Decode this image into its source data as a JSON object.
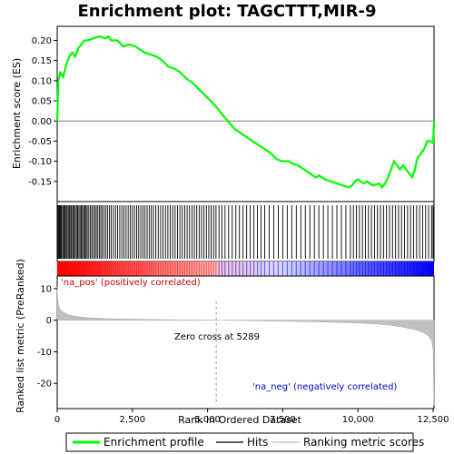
{
  "chart_data": {
    "type": "line",
    "title": "Enrichment plot: TAGCTTT,MIR-9",
    "panels": {
      "es": {
        "ylabel": "Enrichment score (ES)",
        "ylim": [
          -0.2,
          0.235
        ],
        "yticks": [
          -0.15,
          -0.1,
          -0.05,
          0.0,
          0.05,
          0.1,
          0.15,
          0.2
        ],
        "ytick_labels": [
          "-0.15",
          "-0.10",
          "-0.05",
          "0.00",
          "0.05",
          "0.10",
          "0.15",
          "0.20"
        ],
        "series": [
          {
            "name": "Enrichment profile",
            "color": "#00ff00",
            "x": [
              0,
              40,
              100,
              200,
              300,
              400,
              500,
              600,
              700,
              800,
              900,
              1000,
              1200,
              1400,
              1600,
              1700,
              1800,
              2000,
              2200,
              2400,
              2600,
              2700,
              2900,
              3100,
              3300,
              3500,
              3700,
              3900,
              4100,
              4300,
              4500,
              4700,
              4900,
              5100,
              5289,
              5500,
              5700,
              5900,
              6100,
              6300,
              6500,
              6700,
              6900,
              7100,
              7300,
              7500,
              7700,
              7800,
              8000,
              8200,
              8400,
              8600,
              8700,
              8900,
              9100,
              9300,
              9500,
              9700,
              9800,
              9900,
              10000,
              10100,
              10200,
              10300,
              10500,
              10700,
              10800,
              10900,
              11000,
              11100,
              11200,
              11300,
              11400,
              11500,
              11600,
              11700,
              11800,
              11900,
              11950,
              12000,
              12100,
              12200,
              12300,
              12400,
              12500,
              12530
            ],
            "y": [
              0.0,
              0.1,
              0.12,
              0.11,
              0.14,
              0.16,
              0.17,
              0.16,
              0.18,
              0.19,
              0.2,
              0.2,
              0.205,
              0.21,
              0.205,
              0.21,
              0.2,
              0.2,
              0.185,
              0.19,
              0.185,
              0.18,
              0.17,
              0.165,
              0.16,
              0.15,
              0.135,
              0.13,
              0.12,
              0.105,
              0.095,
              0.08,
              0.065,
              0.05,
              0.035,
              0.015,
              -0.002,
              -0.02,
              -0.03,
              -0.04,
              -0.05,
              -0.06,
              -0.07,
              -0.08,
              -0.095,
              -0.1,
              -0.1,
              -0.105,
              -0.11,
              -0.12,
              -0.13,
              -0.14,
              -0.135,
              -0.145,
              -0.15,
              -0.155,
              -0.16,
              -0.165,
              -0.16,
              -0.15,
              -0.145,
              -0.15,
              -0.155,
              -0.15,
              -0.16,
              -0.155,
              -0.165,
              -0.155,
              -0.14,
              -0.12,
              -0.1,
              -0.11,
              -0.12,
              -0.11,
              -0.12,
              -0.13,
              -0.14,
              -0.12,
              -0.1,
              -0.09,
              -0.08,
              -0.07,
              -0.05,
              -0.05,
              -0.055,
              0.0
            ]
          }
        ]
      },
      "hits": {
        "legend_label": "Hits",
        "color": "#000000",
        "positions": [
          10,
          30,
          60,
          90,
          120,
          150,
          190,
          230,
          260,
          300,
          330,
          370,
          410,
          450,
          480,
          520,
          560,
          600,
          640,
          680,
          720,
          760,
          800,
          840,
          880,
          920,
          960,
          1000,
          1050,
          1100,
          1150,
          1200,
          1250,
          1300,
          1350,
          1400,
          1450,
          1500,
          1560,
          1620,
          1680,
          1740,
          1800,
          1870,
          1940,
          2010,
          2080,
          2150,
          2220,
          2290,
          2360,
          2430,
          2500,
          2570,
          2640,
          2710,
          2780,
          2850,
          2920,
          2990,
          3060,
          3130,
          3200,
          3280,
          3360,
          3440,
          3520,
          3600,
          3680,
          3760,
          3840,
          3920,
          4000,
          4080,
          4160,
          4240,
          4320,
          4400,
          4480,
          4560,
          4640,
          4720,
          4800,
          4880,
          4960,
          5040,
          5120,
          5200,
          5280,
          5380,
          5480,
          5580,
          5700,
          5820,
          5940,
          6060,
          6180,
          6300,
          6420,
          6540,
          6660,
          6780,
          6900,
          7050,
          7200,
          7350,
          7500,
          7650,
          7800,
          7950,
          8100,
          8250,
          8400,
          8550,
          8700,
          8850,
          9000,
          9150,
          9300,
          9450,
          9600,
          9750,
          9850,
          9950,
          10050,
          10150,
          10250,
          10350,
          10450,
          10550,
          10650,
          10750,
          10850,
          10950,
          11050,
          11150,
          11250,
          11350,
          11450,
          11550,
          11650,
          11750,
          11850,
          11950,
          12050,
          12150,
          12250,
          12350,
          12450,
          12500
        ]
      },
      "ranked": {
        "ylabel": "Ranked list metric (PreRanked)",
        "ylim": [
          -28,
          14
        ],
        "yticks": [
          -20,
          -10,
          0,
          10
        ],
        "ytick_labels": [
          "-20",
          "-10",
          "0",
          "10"
        ],
        "series": [
          {
            "name": "Ranking metric scores",
            "color": "#c0c0c0",
            "x": [
              0,
              20,
              50,
              100,
              200,
              400,
              700,
              1000,
              1500,
              2000,
              3000,
              4000,
              5000,
              5289,
              6000,
              7000,
              8000,
              9000,
              10000,
              10500,
              11000,
              11500,
              11800,
              12000,
              12200,
              12350,
              12450,
              12500,
              12530
            ],
            "y": [
              10.5,
              6.0,
              4.5,
              3.5,
              2.5,
              1.6,
              1.1,
              0.8,
              0.55,
              0.4,
              0.25,
              0.12,
              0.04,
              0.0,
              -0.1,
              -0.25,
              -0.4,
              -0.6,
              -0.9,
              -1.1,
              -1.5,
              -2.2,
              -2.8,
              -3.3,
              -4.0,
              -5.0,
              -6.5,
              -9.0,
              -27.0
            ]
          }
        ],
        "annotations": {
          "pos_label": "'na_pos' (positively correlated)",
          "neg_label": "'na_neg' (negatively correlated)",
          "zero_cross": "Zero cross at 5289",
          "zero_cross_x": 5289,
          "pos_color": "#cc0000",
          "neg_color": "#0000cc"
        }
      }
    },
    "xlabel": "Rank in Ordered Dataset",
    "xlim": [
      0,
      12530
    ],
    "xticks": [
      0,
      2500,
      5000,
      7500,
      10000,
      12500
    ],
    "xtick_labels": [
      "0",
      "2,500",
      "5,000",
      "7,500",
      "10,000",
      "12,500"
    ],
    "colorbar": {
      "positive_color": "#ff0000",
      "negative_color": "#0000ff",
      "neutral_color": "#ffffff"
    },
    "legend": [
      {
        "label": "Enrichment profile",
        "color": "#00ff00",
        "kind": "thick-line"
      },
      {
        "label": "Hits",
        "color": "#000000",
        "kind": "line"
      },
      {
        "label": "Ranking metric scores",
        "color": "#c0c0c0",
        "kind": "line"
      }
    ],
    "grid": false,
    "legend_placement": "bottom"
  }
}
